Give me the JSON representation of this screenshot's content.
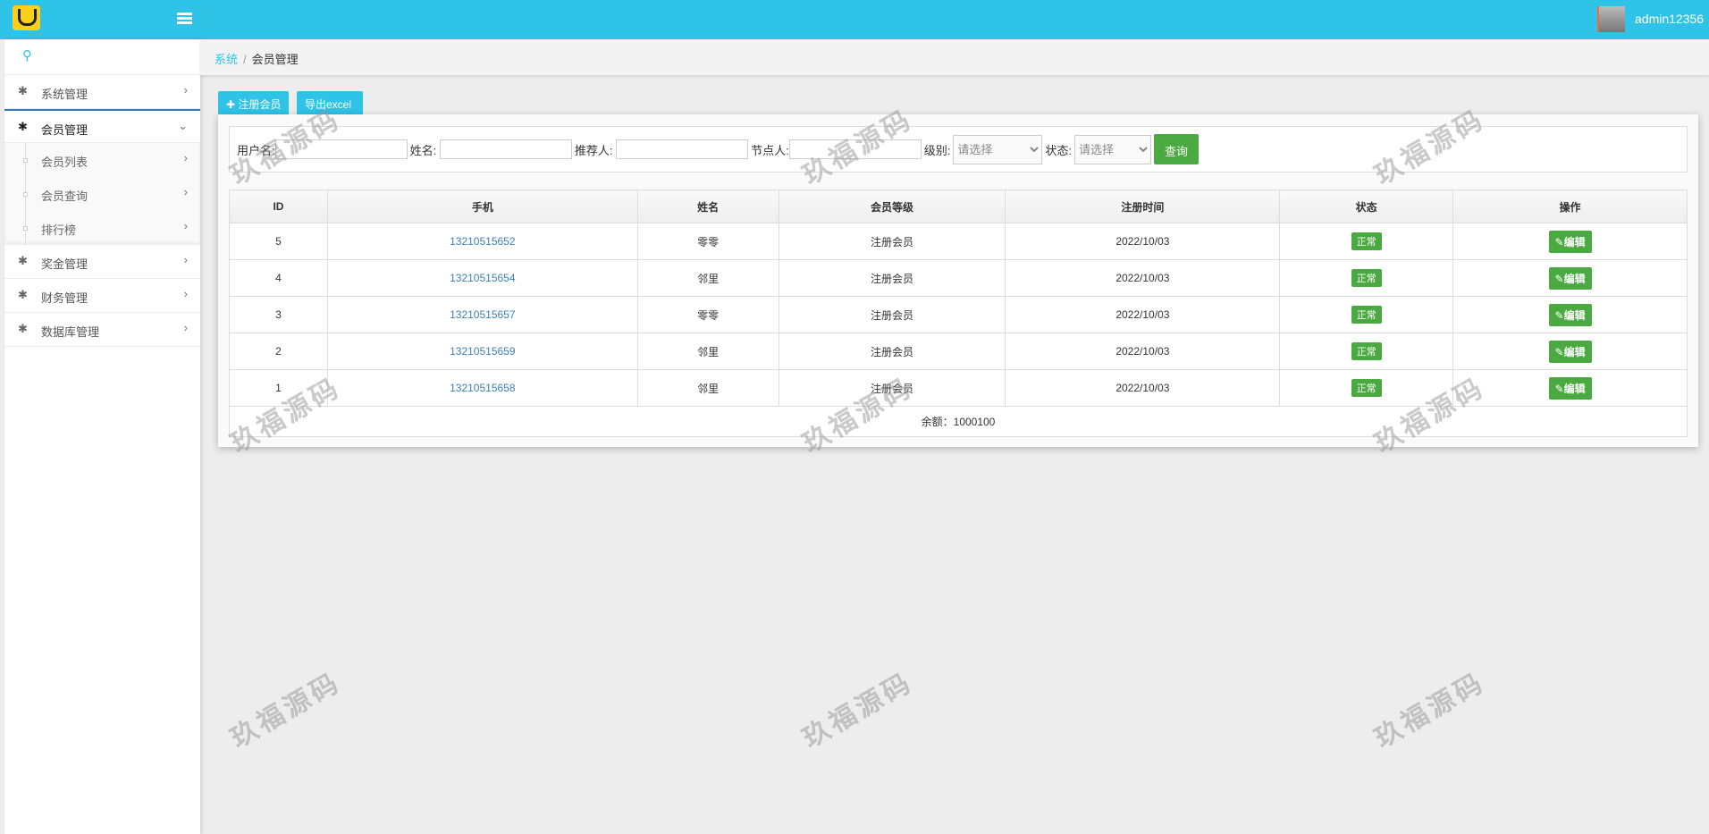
{
  "header": {
    "username": "admin12356"
  },
  "sidebar": {
    "items": [
      {
        "label": "系统管理",
        "icon": "gear-icon"
      },
      {
        "label": "会员管理",
        "icon": "gear-icon",
        "expanded": true,
        "children": [
          {
            "label": "会员列表"
          },
          {
            "label": "会员查询"
          },
          {
            "label": "排行榜"
          }
        ]
      },
      {
        "label": "奖金管理",
        "icon": "gear-icon"
      },
      {
        "label": "财务管理",
        "icon": "gear-icon"
      },
      {
        "label": "数据库管理",
        "icon": "gear-icon"
      }
    ]
  },
  "breadcrumb": {
    "root": "系统",
    "current": "会员管理"
  },
  "toolbar": {
    "register": "注册会员",
    "export": "导出excel"
  },
  "filter": {
    "username": "用户名:",
    "name": "姓名:",
    "referrer": "推荐人:",
    "node": "节点人:",
    "level": "级别:",
    "level_value": "请选择",
    "status": "状态:",
    "status_value": "请选择",
    "query": "查询"
  },
  "table": {
    "headers": [
      "ID",
      "手机",
      "姓名",
      "会员等级",
      "注册时间",
      "状态",
      "操作"
    ],
    "rows": [
      [
        "5",
        "13210515652",
        "零零",
        "注册会员",
        "2022/10/03",
        "正常",
        "编辑"
      ],
      [
        "4",
        "13210515654",
        "邻里",
        "注册会员",
        "2022/10/03",
        "正常",
        "编辑"
      ],
      [
        "3",
        "13210515657",
        "零零",
        "注册会员",
        "2022/10/03",
        "正常",
        "编辑"
      ],
      [
        "2",
        "13210515659",
        "邻里",
        "注册会员",
        "2022/10/03",
        "正常",
        "编辑"
      ],
      [
        "1",
        "13210515658",
        "邻里",
        "注册会员",
        "2022/10/03",
        "正常",
        "编辑"
      ]
    ],
    "footer": "余额：1000100"
  },
  "watermark": "玖福源码",
  "colors": {
    "header": "#2ec3e7",
    "success": "#4aa940",
    "link": "#3d7fb5"
  }
}
